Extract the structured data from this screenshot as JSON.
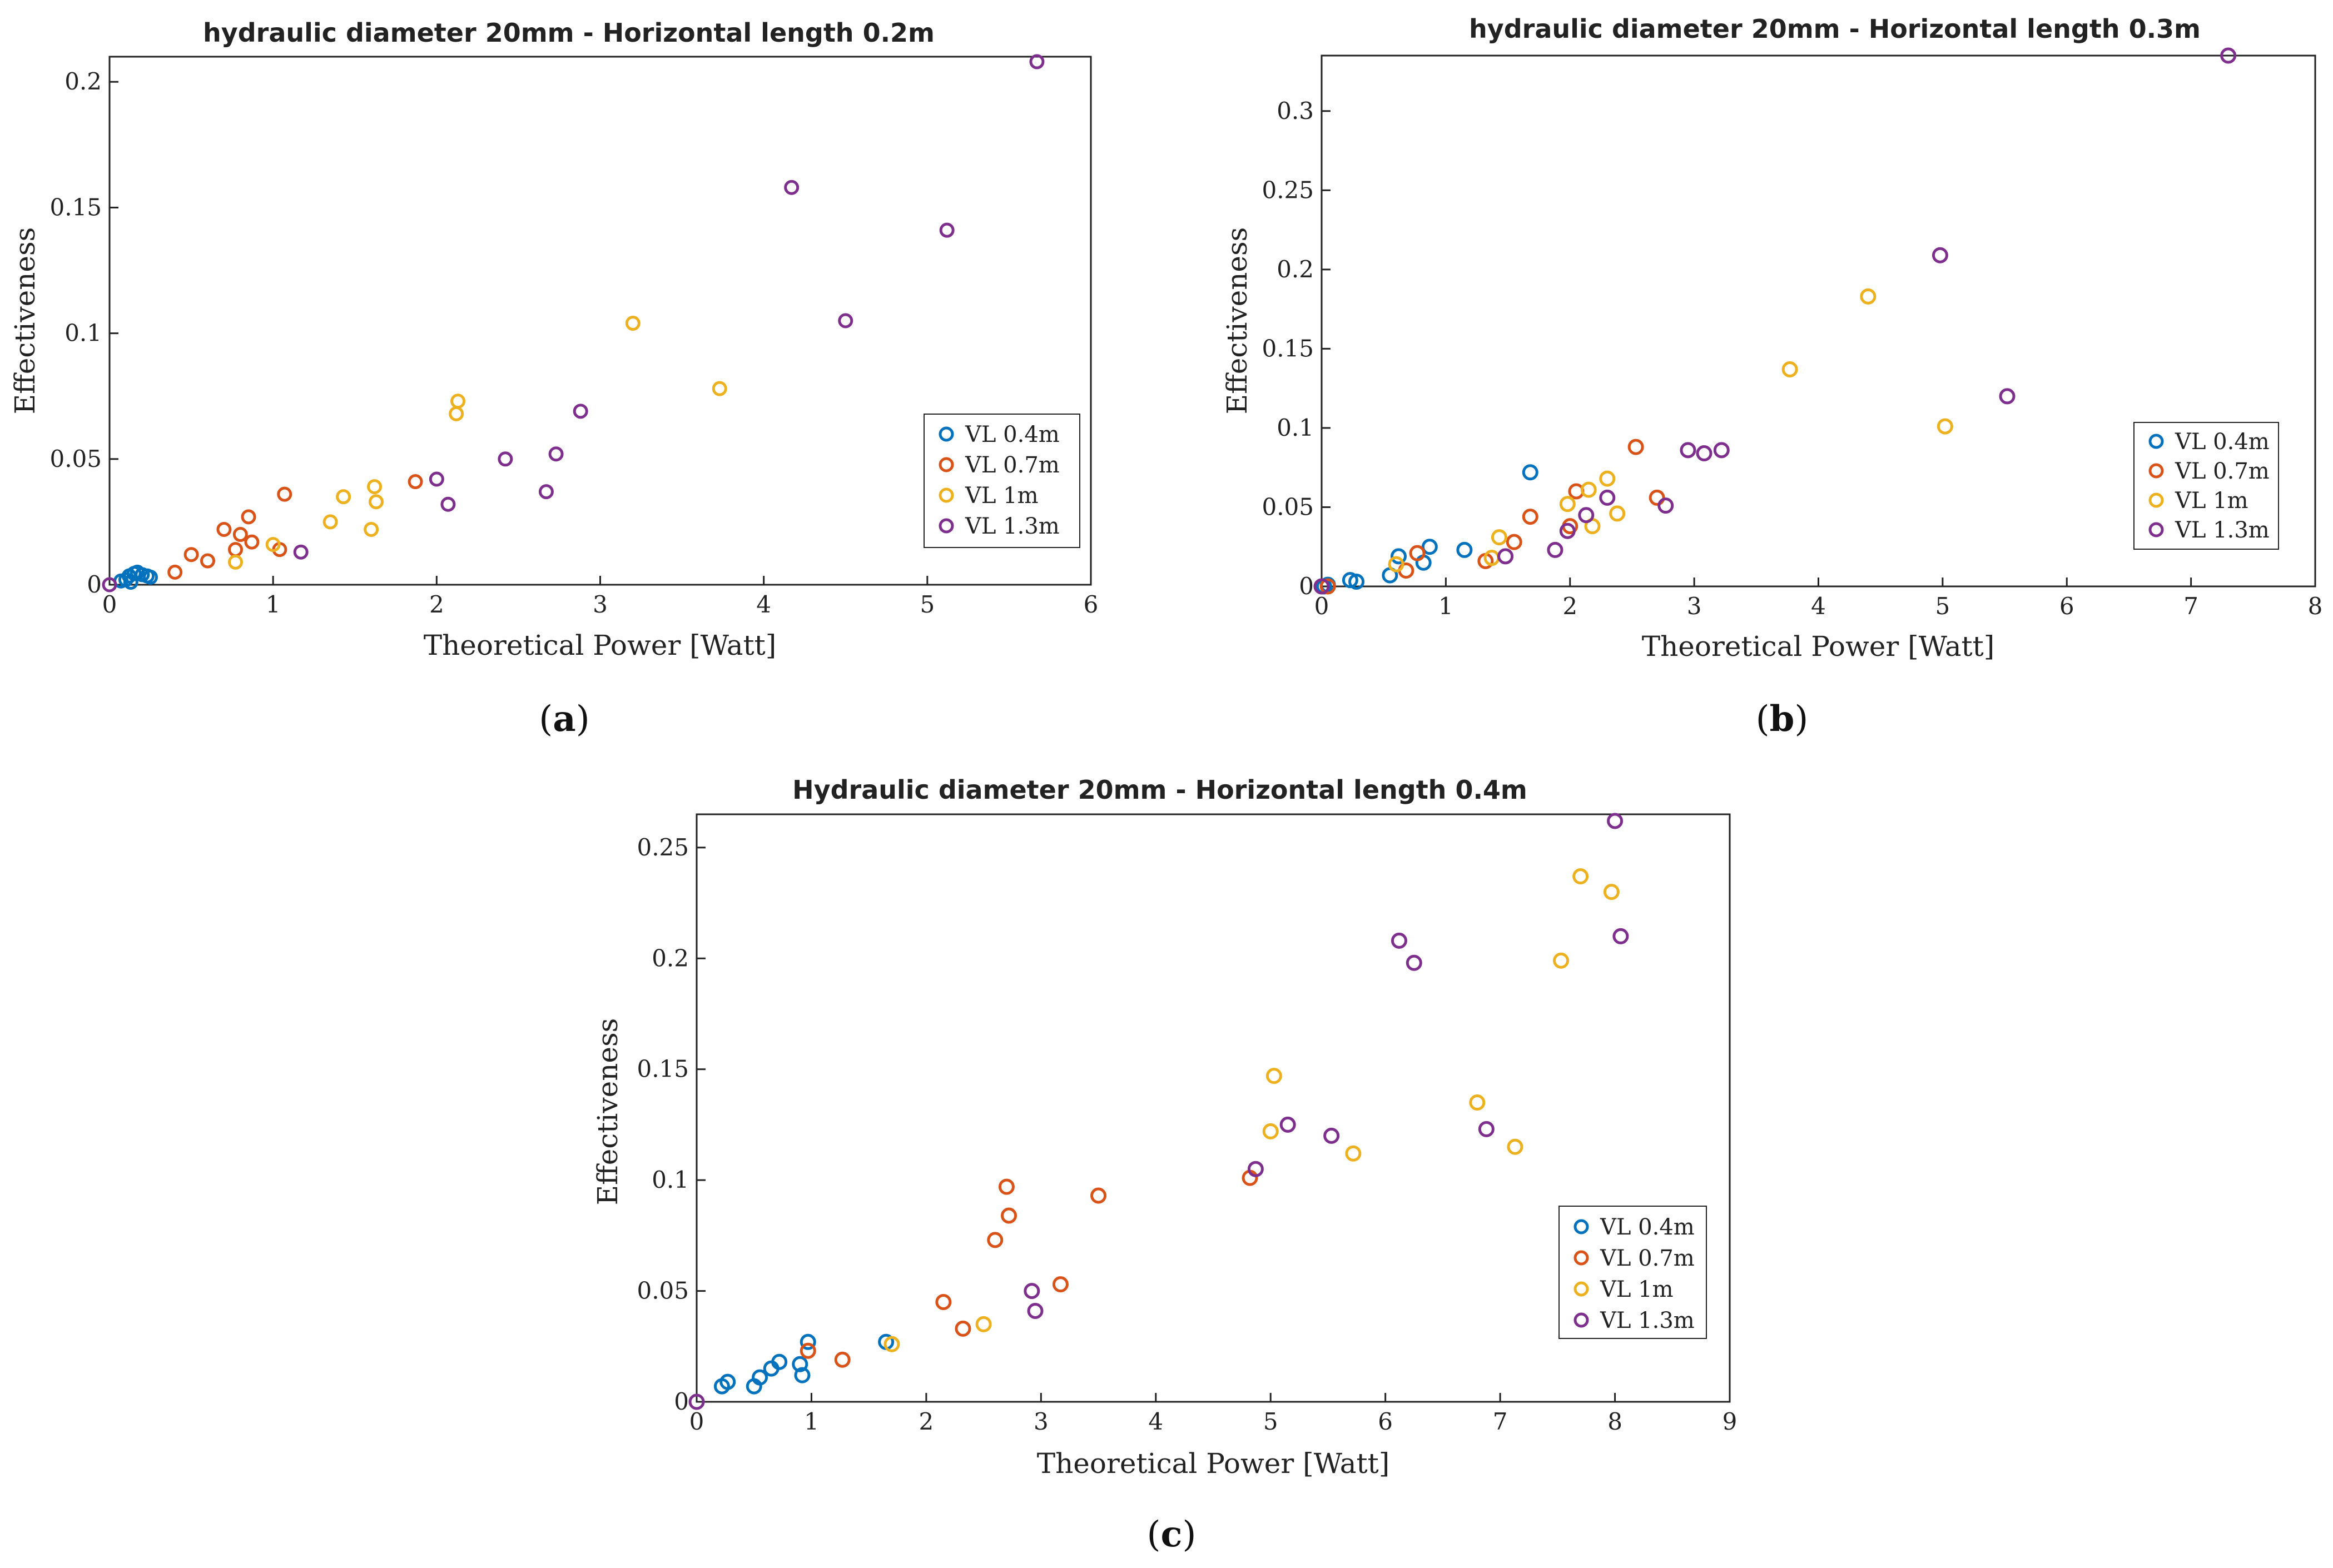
{
  "colors": {
    "series": [
      "#0072BD",
      "#D95319",
      "#EDB120",
      "#7E2F8E"
    ],
    "axis": "#222222"
  },
  "chart_data": [
    {
      "panel": "a",
      "panel_label": "a",
      "type": "scatter",
      "title": "hydraulic diameter 20mm - Horizontal length 0.2m",
      "xlabel": "Theoretical Power [Watt]",
      "ylabel": "Effectiveness",
      "xlim": [
        0,
        6
      ],
      "ylim": [
        0,
        0.21
      ],
      "xticks": [
        "0",
        "1",
        "2",
        "3",
        "4",
        "5",
        "6"
      ],
      "yticks": [
        "0",
        "0.05",
        "0.1",
        "0.15",
        "0.2"
      ],
      "xtick_values": [
        0,
        1,
        2,
        3,
        4,
        5,
        6
      ],
      "ytick_values": [
        0,
        0.05,
        0.1,
        0.15,
        0.2
      ],
      "legend": "bottom-right",
      "series": [
        {
          "name": "VL 0.4m",
          "points": [
            [
              0.07,
              0.0015
            ],
            [
              0.1,
              0.002
            ],
            [
              0.12,
              0.0035
            ],
            [
              0.13,
              0.001
            ],
            [
              0.15,
              0.0045
            ],
            [
              0.17,
              0.005
            ],
            [
              0.2,
              0.004
            ],
            [
              0.23,
              0.0035
            ],
            [
              0.25,
              0.003
            ]
          ]
        },
        {
          "name": "VL 0.7m",
          "points": [
            [
              0.4,
              0.005
            ],
            [
              0.5,
              0.012
            ],
            [
              0.6,
              0.0095
            ],
            [
              0.7,
              0.022
            ],
            [
              0.77,
              0.014
            ],
            [
              0.8,
              0.02
            ],
            [
              0.85,
              0.027
            ],
            [
              0.87,
              0.017
            ],
            [
              1.04,
              0.014
            ],
            [
              1.07,
              0.036
            ],
            [
              1.87,
              0.041
            ]
          ]
        },
        {
          "name": "VL 1m",
          "points": [
            [
              0.77,
              0.009
            ],
            [
              1.0,
              0.016
            ],
            [
              1.35,
              0.025
            ],
            [
              1.43,
              0.035
            ],
            [
              1.6,
              0.022
            ],
            [
              1.62,
              0.039
            ],
            [
              1.63,
              0.033
            ],
            [
              2.12,
              0.068
            ],
            [
              2.13,
              0.073
            ],
            [
              3.2,
              0.104
            ],
            [
              3.73,
              0.078
            ]
          ]
        },
        {
          "name": "VL 1.3m",
          "points": [
            [
              0.0,
              0.0
            ],
            [
              1.17,
              0.013
            ],
            [
              2.0,
              0.042
            ],
            [
              2.07,
              0.032
            ],
            [
              2.42,
              0.05
            ],
            [
              2.67,
              0.037
            ],
            [
              2.73,
              0.052
            ],
            [
              2.88,
              0.069
            ],
            [
              4.17,
              0.158
            ],
            [
              4.5,
              0.105
            ],
            [
              5.12,
              0.141
            ],
            [
              5.67,
              0.208
            ]
          ]
        }
      ]
    },
    {
      "panel": "b",
      "panel_label": "b",
      "type": "scatter",
      "title": "hydraulic diameter 20mm - Horizontal length 0.3m",
      "xlabel": "Theoretical Power  [Watt]",
      "ylabel": "Effectiveness",
      "xlim": [
        0,
        8
      ],
      "ylim": [
        0,
        0.335
      ],
      "xticks": [
        "0",
        "1",
        "2",
        "3",
        "4",
        "5",
        "6",
        "7",
        "8"
      ],
      "yticks": [
        "0",
        "0.05",
        "0.1",
        "0.15",
        "0.2",
        "0.25",
        "0.3"
      ],
      "xtick_values": [
        0,
        1,
        2,
        3,
        4,
        5,
        6,
        7,
        8
      ],
      "ytick_values": [
        0,
        0.05,
        0.1,
        0.15,
        0.2,
        0.25,
        0.3
      ],
      "legend": "bottom-right",
      "series": [
        {
          "name": "VL 0.4m",
          "points": [
            [
              0.02,
              0.0
            ],
            [
              0.05,
              0.001
            ],
            [
              0.23,
              0.004
            ],
            [
              0.28,
              0.003
            ],
            [
              0.55,
              0.007
            ],
            [
              0.62,
              0.019
            ],
            [
              0.82,
              0.015
            ],
            [
              0.87,
              0.025
            ],
            [
              1.15,
              0.023
            ],
            [
              1.68,
              0.072
            ]
          ]
        },
        {
          "name": "VL 0.7m",
          "points": [
            [
              0.05,
              0.0
            ],
            [
              0.68,
              0.01
            ],
            [
              0.77,
              0.021
            ],
            [
              1.32,
              0.016
            ],
            [
              1.55,
              0.028
            ],
            [
              1.68,
              0.044
            ],
            [
              2.0,
              0.038
            ],
            [
              2.05,
              0.06
            ],
            [
              2.53,
              0.088
            ],
            [
              2.7,
              0.056
            ]
          ]
        },
        {
          "name": "VL 1m",
          "points": [
            [
              0.6,
              0.014
            ],
            [
              1.37,
              0.018
            ],
            [
              1.43,
              0.031
            ],
            [
              1.98,
              0.052
            ],
            [
              2.15,
              0.061
            ],
            [
              2.18,
              0.038
            ],
            [
              2.3,
              0.068
            ],
            [
              2.38,
              0.046
            ],
            [
              3.77,
              0.137
            ],
            [
              4.4,
              0.183
            ],
            [
              5.02,
              0.101
            ]
          ]
        },
        {
          "name": "VL 1.3m",
          "points": [
            [
              0.0,
              0.0
            ],
            [
              1.48,
              0.019
            ],
            [
              1.88,
              0.023
            ],
            [
              1.98,
              0.035
            ],
            [
              2.13,
              0.045
            ],
            [
              2.3,
              0.056
            ],
            [
              2.77,
              0.051
            ],
            [
              2.95,
              0.086
            ],
            [
              3.08,
              0.084
            ],
            [
              3.22,
              0.086
            ],
            [
              4.98,
              0.209
            ],
            [
              5.52,
              0.12
            ],
            [
              7.3,
              0.335
            ]
          ]
        }
      ]
    },
    {
      "panel": "c",
      "panel_label": "c",
      "type": "scatter",
      "title": "Hydraulic diameter 20mm - Horizontal length 0.4m",
      "xlabel": "Theoretical Power [Watt]",
      "ylabel": "Effectiveness",
      "xlim": [
        0,
        9
      ],
      "ylim": [
        0,
        0.265
      ],
      "xticks": [
        "0",
        "1",
        "2",
        "3",
        "4",
        "5",
        "6",
        "7",
        "8",
        "9"
      ],
      "yticks": [
        "0",
        "0.05",
        "0.1",
        "0.15",
        "0.2",
        "0.25"
      ],
      "xtick_values": [
        0,
        1,
        2,
        3,
        4,
        5,
        6,
        7,
        8,
        9
      ],
      "ytick_values": [
        0,
        0.05,
        0.1,
        0.15,
        0.2,
        0.25
      ],
      "legend": "bottom-right",
      "series": [
        {
          "name": "VL 0.4m",
          "points": [
            [
              0.22,
              0.007
            ],
            [
              0.27,
              0.009
            ],
            [
              0.5,
              0.007
            ],
            [
              0.55,
              0.011
            ],
            [
              0.65,
              0.015
            ],
            [
              0.72,
              0.018
            ],
            [
              0.9,
              0.017
            ],
            [
              0.92,
              0.012
            ],
            [
              0.97,
              0.027
            ],
            [
              1.65,
              0.027
            ]
          ]
        },
        {
          "name": "VL 0.7m",
          "points": [
            [
              0.97,
              0.023
            ],
            [
              1.27,
              0.019
            ],
            [
              2.15,
              0.045
            ],
            [
              2.32,
              0.033
            ],
            [
              2.6,
              0.073
            ],
            [
              2.7,
              0.097
            ],
            [
              2.72,
              0.084
            ],
            [
              3.17,
              0.053
            ],
            [
              3.5,
              0.093
            ],
            [
              4.82,
              0.101
            ]
          ]
        },
        {
          "name": "VL 1m",
          "points": [
            [
              1.7,
              0.026
            ],
            [
              2.5,
              0.035
            ],
            [
              5.0,
              0.122
            ],
            [
              5.03,
              0.147
            ],
            [
              5.72,
              0.112
            ],
            [
              6.8,
              0.135
            ],
            [
              7.13,
              0.115
            ],
            [
              7.53,
              0.199
            ],
            [
              7.7,
              0.237
            ],
            [
              7.97,
              0.23
            ]
          ]
        },
        {
          "name": "VL 1.3m",
          "points": [
            [
              0.0,
              0.0
            ],
            [
              2.92,
              0.05
            ],
            [
              2.95,
              0.041
            ],
            [
              4.87,
              0.105
            ],
            [
              5.15,
              0.125
            ],
            [
              5.53,
              0.12
            ],
            [
              6.12,
              0.208
            ],
            [
              6.25,
              0.198
            ],
            [
              6.88,
              0.123
            ],
            [
              8.0,
              0.262
            ],
            [
              8.05,
              0.21
            ]
          ]
        }
      ]
    }
  ]
}
